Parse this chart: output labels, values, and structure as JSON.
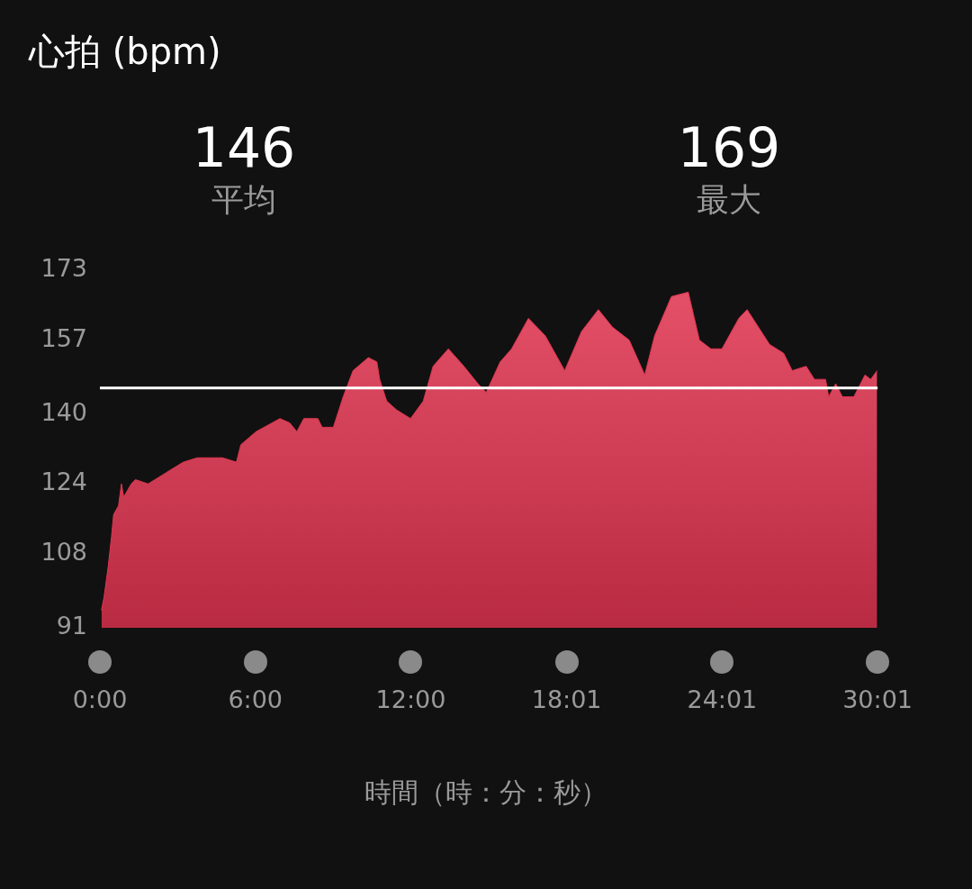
{
  "chart_data": {
    "type": "area",
    "title": "心拍 (bpm)",
    "xlabel": "時間（時：分：秒）",
    "annotations": [
      "146",
      "平均",
      "169",
      "最大"
    ],
    "x": [
      0.06,
      0.16,
      0.32,
      0.45,
      0.53,
      0.72,
      0.83,
      0.92,
      1.21,
      1.37,
      1.86,
      2.4,
      2.67,
      3.22,
      3.76,
      4.19,
      4.73,
      5.27,
      5.44,
      6.03,
      6.95,
      7.33,
      7.6,
      7.87,
      8.41,
      8.58,
      9.01,
      9.39,
      9.77,
      10.36,
      10.69,
      10.8,
      11.07,
      11.45,
      11.99,
      12.48,
      12.86,
      13.45,
      14.05,
      14.59,
      14.91,
      15.45,
      15.89,
      16.54,
      17.19,
      17.94,
      18.59,
      19.24,
      19.78,
      20.43,
      21.03,
      21.41,
      22.06,
      22.71,
      23.14,
      23.58,
      24.01,
      24.66,
      24.98,
      25.85,
      26.39,
      26.72,
      27.26,
      27.58,
      28.01,
      28.13,
      28.4,
      28.66,
      29.1,
      29.53,
      29.75,
      30.0
    ],
    "series": [
      {
        "color": "#e23450",
        "values": [
          95,
          98,
          105,
          112,
          117,
          119,
          124,
          121,
          124,
          125,
          124,
          126,
          127,
          129,
          130,
          130,
          130,
          129,
          133,
          136,
          139,
          138,
          136,
          139,
          139,
          137,
          137,
          144,
          150,
          153,
          152,
          148,
          143,
          141,
          139,
          143,
          151,
          155,
          151,
          147,
          145,
          152,
          155,
          162,
          158,
          150,
          159,
          164,
          160,
          157,
          149,
          158,
          167,
          168,
          157,
          155,
          155,
          162,
          164,
          156,
          154,
          150,
          151,
          148,
          148,
          144,
          147,
          144,
          144,
          149,
          148,
          150
        ]
      }
    ],
    "xlim": [
      0,
      30.0167
    ],
    "xticks": [
      {
        "value": 0,
        "label": "0:00"
      },
      {
        "value": 6,
        "label": "6:00"
      },
      {
        "value": 12,
        "label": "12:00"
      },
      {
        "value": 18.0167,
        "label": "18:01"
      },
      {
        "value": 24.0167,
        "label": "24:01"
      },
      {
        "value": 30.0167,
        "label": "30:01"
      }
    ],
    "ylim": [
      91,
      173
    ],
    "yticks": [
      91,
      108,
      124,
      140,
      157,
      173
    ],
    "ref_lines": [
      {
        "axis": "y",
        "value": 146,
        "color": "#ffffff"
      }
    ],
    "grid": false,
    "legend": false,
    "marker": "none"
  }
}
